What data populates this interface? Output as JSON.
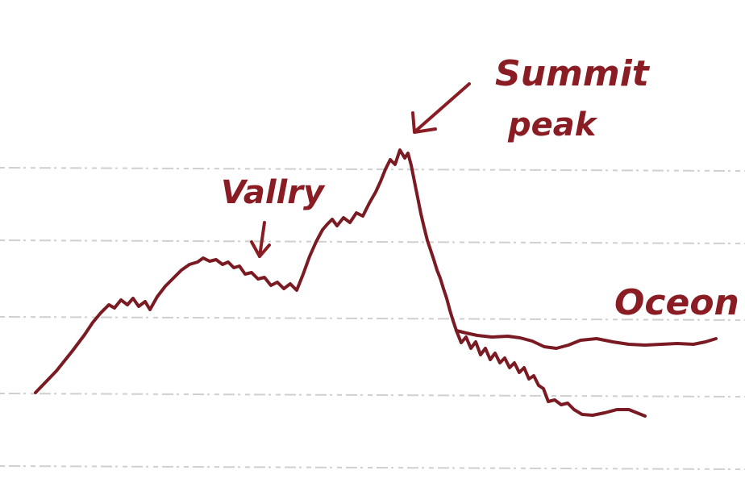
{
  "annotations": {
    "summit_line1": "Summit",
    "summit_line2": "peak",
    "valley": "Vallry",
    "ocean": "Oceon"
  },
  "colors": {
    "ink": "#7a1a22",
    "ruled_lines": "#cfcfcf",
    "background": "#ffffff"
  }
}
